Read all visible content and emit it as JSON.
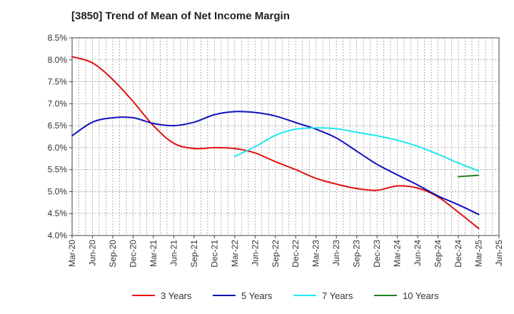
{
  "title": "[3850]  Trend of Mean of Net Income Margin",
  "chart_data": {
    "type": "line",
    "title": "[3850]  Trend of Mean of Net Income Margin",
    "xlabel": "",
    "ylabel": "",
    "ylim": [
      4.0,
      8.5
    ],
    "y_ticks": [
      "8.5%",
      "8.0%",
      "7.5%",
      "7.0%",
      "6.5%",
      "6.0%",
      "5.5%",
      "5.0%",
      "4.5%",
      "4.0%"
    ],
    "x_ticks": [
      "Mar-20",
      "Jun-20",
      "Sep-20",
      "Dec-20",
      "Mar-21",
      "Jun-21",
      "Sep-21",
      "Dec-21",
      "Mar-22",
      "Jun-22",
      "Sep-22",
      "Dec-22",
      "Mar-23",
      "Jun-23",
      "Sep-23",
      "Dec-23",
      "Mar-24",
      "Jun-24",
      "Sep-24",
      "Dec-24",
      "Mar-25",
      "Jun-25"
    ],
    "grid": true,
    "legend_position": "bottom",
    "series": [
      {
        "name": "3 Years",
        "color": "#e01010",
        "x": [
          "Mar-20",
          "Jun-20",
          "Sep-20",
          "Dec-20",
          "Mar-21",
          "Jun-21",
          "Sep-21",
          "Dec-21",
          "Mar-22",
          "Jun-22",
          "Sep-22",
          "Dec-22",
          "Mar-23",
          "Jun-23",
          "Sep-23",
          "Dec-23",
          "Mar-24",
          "Jun-24",
          "Sep-24",
          "Dec-24",
          "Mar-25"
        ],
        "values": [
          8.07,
          7.93,
          7.55,
          7.05,
          6.5,
          6.1,
          5.98,
          6.0,
          5.98,
          5.88,
          5.68,
          5.5,
          5.3,
          5.17,
          5.07,
          5.03,
          5.13,
          5.08,
          4.88,
          4.53,
          4.16
        ]
      },
      {
        "name": "5 Years",
        "color": "#1010c0",
        "x": [
          "Mar-20",
          "Jun-20",
          "Sep-20",
          "Dec-20",
          "Mar-21",
          "Jun-21",
          "Sep-21",
          "Dec-21",
          "Mar-22",
          "Jun-22",
          "Sep-22",
          "Dec-22",
          "Mar-23",
          "Jun-23",
          "Sep-23",
          "Dec-23",
          "Mar-24",
          "Jun-24",
          "Sep-24",
          "Dec-24",
          "Mar-25"
        ],
        "values": [
          6.27,
          6.58,
          6.68,
          6.68,
          6.55,
          6.5,
          6.58,
          6.75,
          6.82,
          6.8,
          6.72,
          6.57,
          6.42,
          6.22,
          5.92,
          5.62,
          5.38,
          5.15,
          4.9,
          4.7,
          4.48
        ]
      },
      {
        "name": "7 Years",
        "color": "#20e8f0",
        "x": [
          "Mar-22",
          "Jun-22",
          "Sep-22",
          "Dec-22",
          "Mar-23",
          "Jun-23",
          "Sep-23",
          "Dec-23",
          "Mar-24",
          "Jun-24",
          "Sep-24",
          "Dec-24",
          "Mar-25"
        ],
        "values": [
          5.8,
          6.02,
          6.28,
          6.42,
          6.45,
          6.43,
          6.35,
          6.27,
          6.17,
          6.03,
          5.85,
          5.65,
          5.47
        ]
      },
      {
        "name": "10 Years",
        "color": "#208020",
        "x": [
          "Dec-24",
          "Mar-25"
        ],
        "values": [
          5.34,
          5.37
        ]
      }
    ]
  }
}
